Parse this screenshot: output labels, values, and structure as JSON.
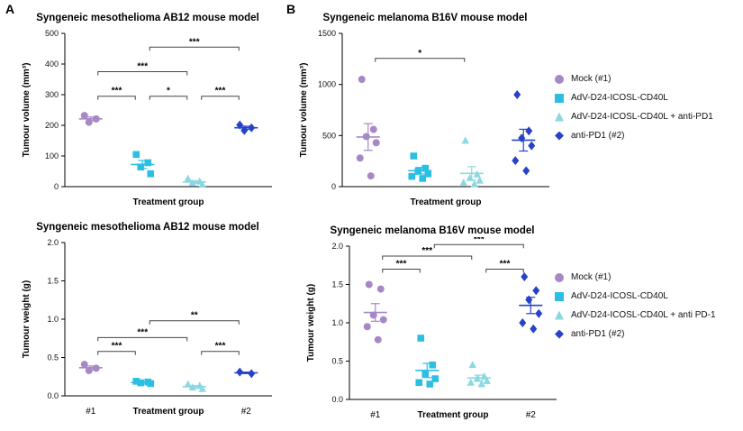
{
  "panel_labels": {
    "a": "A",
    "b": "B"
  },
  "colors": {
    "mock": "#A788C6",
    "adv": "#2CBFE4",
    "adv_antipd1": "#8BD8E2",
    "antipd1": "#2742C8"
  },
  "chart_data": [
    {
      "type": "scatter",
      "title": "Syngeneic mesothelioma AB12 mouse model",
      "ylabel": "Tumour volume (mm³)",
      "xlabel": "Treatment group",
      "ylim": [
        0,
        500
      ],
      "yticks": [
        0,
        100,
        200,
        300,
        400,
        500
      ],
      "ytick_labels": [
        "0",
        "100",
        "200",
        "300",
        "400",
        "500"
      ],
      "grid": false,
      "groups": [
        {
          "name": "Mock (#1)",
          "marker": "circle",
          "color": "#A788C6",
          "x_tick": "",
          "values": [
            232,
            221,
            210
          ]
        },
        {
          "name": "AdV-D24-ICOSL-CD40L",
          "marker": "square",
          "color": "#2CBFE4",
          "x_tick": "",
          "values": [
            105,
            78,
            64,
            42
          ]
        },
        {
          "name": "AdV-D24-ICOSL-CD40L + anti-PD1",
          "marker": "triangle",
          "color": "#8BD8E2",
          "x_tick": "",
          "values": [
            26,
            17,
            11,
            7
          ]
        },
        {
          "name": "anti-PD1 (#2)",
          "marker": "diamond",
          "color": "#2742C8",
          "x_tick": "",
          "values": [
            201,
            192,
            183
          ]
        }
      ],
      "brackets": [
        {
          "from": 0,
          "to": 1,
          "y": 295,
          "label": "***"
        },
        {
          "from": 1,
          "to": 2,
          "y": 295,
          "label": "*"
        },
        {
          "from": 2,
          "to": 3,
          "y": 295,
          "label": "***"
        },
        {
          "from": 0,
          "to": 2,
          "y": 375,
          "label": "***"
        },
        {
          "from": 1,
          "to": 3,
          "y": 455,
          "label": "***"
        }
      ]
    },
    {
      "type": "scatter",
      "title": "Syngeneic melanoma B16V mouse model",
      "ylabel": "Tumour volume (mm³)",
      "xlabel": "Treatment group",
      "ylim": [
        0,
        1500
      ],
      "yticks": [
        0,
        500,
        1000,
        1500
      ],
      "ytick_labels": [
        "0",
        "500",
        "1000",
        "1500"
      ],
      "grid": false,
      "groups": [
        {
          "name": "Mock (#1)",
          "marker": "circle",
          "color": "#A788C6",
          "x_tick": "",
          "values": [
            1050,
            560,
            490,
            430,
            280,
            105
          ]
        },
        {
          "name": "AdV-D24-ICOSL-CD40L",
          "marker": "square",
          "color": "#2CBFE4",
          "x_tick": "",
          "values": [
            300,
            180,
            150,
            125,
            100,
            80
          ]
        },
        {
          "name": "AdV-D24-ICOSL-CD40L + anti-PD1",
          "marker": "triangle",
          "color": "#8BD8E2",
          "x_tick": "",
          "values": [
            450,
            120,
            85,
            60,
            40,
            25
          ]
        },
        {
          "name": "anti-PD1 (#2)",
          "marker": "diamond",
          "color": "#2742C8",
          "x_tick": "",
          "values": [
            900,
            545,
            475,
            400,
            255,
            155
          ]
        }
      ],
      "brackets": [
        {
          "from": 0,
          "to": 2,
          "y": 1255,
          "label": "*"
        }
      ]
    },
    {
      "type": "scatter",
      "title": "Syngeneic mesothelioma AB12 mouse model",
      "ylabel": "Tumour weight (g)",
      "xlabel": "Treatment group",
      "ylim": [
        0,
        2.0
      ],
      "yticks": [
        0,
        0.5,
        1.0,
        1.5,
        2.0
      ],
      "ytick_labels": [
        "0.0",
        "0.5",
        "1.0",
        "1.5",
        "2.0"
      ],
      "grid": false,
      "groups": [
        {
          "name": "Mock (#1)",
          "marker": "circle",
          "color": "#A788C6",
          "x_tick": "#1",
          "values": [
            0.41,
            0.36,
            0.33
          ]
        },
        {
          "name": "AdV-D24-ICOSL-CD40L",
          "marker": "square",
          "color": "#2CBFE4",
          "x_tick": "",
          "values": [
            0.19,
            0.18,
            0.17,
            0.16
          ]
        },
        {
          "name": "AdV-D24-ICOSL-CD40L + anti-PD1",
          "marker": "triangle",
          "color": "#8BD8E2",
          "x_tick": "",
          "values": [
            0.15,
            0.13,
            0.11,
            0.09
          ]
        },
        {
          "name": "anti-PD1 (#2)",
          "marker": "diamond",
          "color": "#2742C8",
          "x_tick": "#2",
          "values": [
            0.31,
            0.29
          ]
        }
      ],
      "brackets": [
        {
          "from": 0,
          "to": 1,
          "y": 0.58,
          "label": "***"
        },
        {
          "from": 0,
          "to": 2,
          "y": 0.76,
          "label": "***"
        },
        {
          "from": 2,
          "to": 3,
          "y": 0.58,
          "label": "***"
        },
        {
          "from": 1,
          "to": 3,
          "y": 0.98,
          "label": "**"
        }
      ]
    },
    {
      "type": "scatter",
      "title": "Syngeneic melanoma B16V mouse model",
      "ylabel": "Tumour weight (g)",
      "xlabel": "Treatment group",
      "ylim": [
        0,
        2.0
      ],
      "yticks": [
        0,
        0.5,
        1.0,
        1.5,
        2.0
      ],
      "ytick_labels": [
        "0.0",
        "0.5",
        "1.0",
        "1.5",
        "2.0"
      ],
      "grid": false,
      "groups": [
        {
          "name": "Mock (#1)",
          "marker": "circle",
          "color": "#A788C6",
          "x_tick": "#1",
          "values": [
            1.5,
            1.44,
            1.1,
            1.04,
            0.95,
            0.78
          ]
        },
        {
          "name": "AdV-D24-ICOSL-CD40L",
          "marker": "square",
          "color": "#2CBFE4",
          "x_tick": "",
          "values": [
            0.8,
            0.45,
            0.33,
            0.27,
            0.22,
            0.2
          ]
        },
        {
          "name": "AdV-D24-ICOSL-CD40L + anti PD-1",
          "marker": "triangle",
          "color": "#8BD8E2",
          "x_tick": "",
          "values": [
            0.45,
            0.3,
            0.27,
            0.24,
            0.22,
            0.2
          ]
        },
        {
          "name": "anti-PD1 (#2)",
          "marker": "diamond",
          "color": "#2742C8",
          "x_tick": "#2",
          "values": [
            1.6,
            1.42,
            1.3,
            1.12,
            1.0,
            0.92
          ]
        }
      ],
      "brackets": [
        {
          "from": 0,
          "to": 1,
          "y": 1.7,
          "label": "***"
        },
        {
          "from": 0,
          "to": 2,
          "y": 1.87,
          "label": "***"
        },
        {
          "from": 2,
          "to": 3,
          "y": 1.7,
          "label": "***"
        },
        {
          "from": 1,
          "to": 3,
          "y": 2.02,
          "label": "***"
        }
      ]
    }
  ],
  "legends": [
    {
      "items": [
        {
          "label": "Mock (#1)",
          "marker": "circle",
          "color": "#A788C6"
        },
        {
          "label": "AdV-D24-ICOSL-CD40L",
          "marker": "square",
          "color": "#2CBFE4"
        },
        {
          "label": "AdV-D24-ICOSL-CD40L + anti-PD1",
          "marker": "triangle",
          "color": "#8BD8E2"
        },
        {
          "label": "anti-PD1 (#2)",
          "marker": "diamond",
          "color": "#2742C8"
        }
      ]
    },
    {
      "items": [
        {
          "label": "Mock (#1)",
          "marker": "circle",
          "color": "#A788C6"
        },
        {
          "label": "AdV-D24-ICOSL-CD40L",
          "marker": "square",
          "color": "#2CBFE4"
        },
        {
          "label": "AdV-D24-ICOSL-CD40L + anti PD-1",
          "marker": "triangle",
          "color": "#8BD8E2"
        },
        {
          "label": "anti-PD1 (#2)",
          "marker": "diamond",
          "color": "#2742C8"
        }
      ]
    }
  ]
}
